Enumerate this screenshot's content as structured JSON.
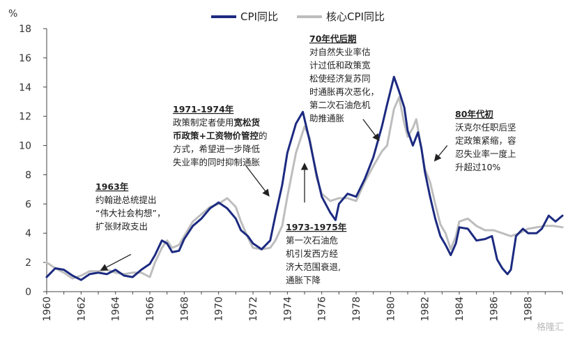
{
  "chart_data": {
    "type": "line",
    "ylabel": "%",
    "ylim": [
      0,
      18
    ],
    "yticks": [
      0,
      2,
      4,
      6,
      8,
      10,
      12,
      14,
      16,
      18
    ],
    "xlim": [
      1960,
      1990
    ],
    "xticks": [
      "1960",
      "1962",
      "1964",
      "1966",
      "1968",
      "1970",
      "1972",
      "1974",
      "1976",
      "1978",
      "1980",
      "1982",
      "1984",
      "1986",
      "1988"
    ],
    "legend_position": "top-center",
    "series": [
      {
        "name": "CPI同比",
        "color": "#1c2a80",
        "points": [
          [
            1960.0,
            1.0
          ],
          [
            1960.5,
            1.6
          ],
          [
            1961.0,
            1.5
          ],
          [
            1961.5,
            1.1
          ],
          [
            1962.0,
            0.8
          ],
          [
            1962.5,
            1.2
          ],
          [
            1963.0,
            1.3
          ],
          [
            1963.5,
            1.2
          ],
          [
            1964.0,
            1.5
          ],
          [
            1964.5,
            1.1
          ],
          [
            1965.0,
            1.0
          ],
          [
            1965.5,
            1.5
          ],
          [
            1966.0,
            1.9
          ],
          [
            1966.3,
            2.5
          ],
          [
            1966.7,
            3.5
          ],
          [
            1967.0,
            3.3
          ],
          [
            1967.3,
            2.7
          ],
          [
            1967.7,
            2.8
          ],
          [
            1968.0,
            3.6
          ],
          [
            1968.5,
            4.5
          ],
          [
            1969.0,
            5.0
          ],
          [
            1969.5,
            5.7
          ],
          [
            1970.0,
            6.1
          ],
          [
            1970.5,
            5.7
          ],
          [
            1971.0,
            5.0
          ],
          [
            1971.3,
            4.2
          ],
          [
            1971.7,
            3.8
          ],
          [
            1972.0,
            3.3
          ],
          [
            1972.5,
            2.9
          ],
          [
            1973.0,
            3.5
          ],
          [
            1973.3,
            5.2
          ],
          [
            1973.7,
            7.3
          ],
          [
            1974.0,
            9.5
          ],
          [
            1974.5,
            11.5
          ],
          [
            1974.9,
            12.3
          ],
          [
            1975.3,
            10.3
          ],
          [
            1975.7,
            8.0
          ],
          [
            1976.0,
            6.5
          ],
          [
            1976.5,
            5.4
          ],
          [
            1976.8,
            4.9
          ],
          [
            1977.0,
            6.0
          ],
          [
            1977.5,
            6.7
          ],
          [
            1978.0,
            6.5
          ],
          [
            1978.5,
            7.7
          ],
          [
            1979.0,
            9.2
          ],
          [
            1979.5,
            11.3
          ],
          [
            1979.8,
            12.8
          ],
          [
            1980.2,
            14.7
          ],
          [
            1980.5,
            13.7
          ],
          [
            1980.8,
            12.6
          ],
          [
            1981.0,
            11.0
          ],
          [
            1981.3,
            10.0
          ],
          [
            1981.6,
            10.9
          ],
          [
            1981.8,
            9.8
          ],
          [
            1982.0,
            8.2
          ],
          [
            1982.3,
            6.5
          ],
          [
            1982.6,
            5.0
          ],
          [
            1982.9,
            3.8
          ],
          [
            1983.2,
            3.2
          ],
          [
            1983.5,
            2.5
          ],
          [
            1983.8,
            3.3
          ],
          [
            1984.0,
            4.4
          ],
          [
            1984.5,
            4.3
          ],
          [
            1985.0,
            3.5
          ],
          [
            1985.5,
            3.6
          ],
          [
            1985.9,
            3.8
          ],
          [
            1986.2,
            2.2
          ],
          [
            1986.5,
            1.6
          ],
          [
            1986.8,
            1.2
          ],
          [
            1987.0,
            1.5
          ],
          [
            1987.3,
            3.8
          ],
          [
            1987.7,
            4.3
          ],
          [
            1988.0,
            4.0
          ],
          [
            1988.5,
            4.0
          ],
          [
            1988.8,
            4.3
          ],
          [
            1989.2,
            5.2
          ],
          [
            1989.6,
            4.8
          ],
          [
            1990.0,
            5.2
          ]
        ]
      },
      {
        "name": "核心CPI同比",
        "color": "#bdbdbd",
        "points": [
          [
            1960.0,
            2.0
          ],
          [
            1960.5,
            1.6
          ],
          [
            1961.0,
            1.3
          ],
          [
            1961.5,
            0.9
          ],
          [
            1962.0,
            1.1
          ],
          [
            1962.5,
            1.4
          ],
          [
            1963.0,
            1.4
          ],
          [
            1963.5,
            1.5
          ],
          [
            1964.0,
            1.3
          ],
          [
            1964.5,
            1.2
          ],
          [
            1965.0,
            1.3
          ],
          [
            1965.5,
            1.3
          ],
          [
            1966.0,
            1.0
          ],
          [
            1966.3,
            2.0
          ],
          [
            1966.7,
            3.0
          ],
          [
            1967.0,
            3.5
          ],
          [
            1967.3,
            3.0
          ],
          [
            1967.7,
            3.2
          ],
          [
            1968.0,
            3.8
          ],
          [
            1968.5,
            4.8
          ],
          [
            1969.0,
            5.3
          ],
          [
            1969.5,
            5.8
          ],
          [
            1970.0,
            6.0
          ],
          [
            1970.5,
            6.4
          ],
          [
            1971.0,
            5.8
          ],
          [
            1971.3,
            4.8
          ],
          [
            1971.7,
            3.7
          ],
          [
            1972.0,
            3.0
          ],
          [
            1972.5,
            2.9
          ],
          [
            1973.0,
            3.0
          ],
          [
            1973.3,
            3.5
          ],
          [
            1973.7,
            4.5
          ],
          [
            1974.0,
            6.5
          ],
          [
            1974.5,
            9.5
          ],
          [
            1975.0,
            11.3
          ],
          [
            1975.3,
            10.5
          ],
          [
            1975.7,
            7.8
          ],
          [
            1976.0,
            6.7
          ],
          [
            1976.5,
            6.2
          ],
          [
            1977.0,
            6.4
          ],
          [
            1977.5,
            6.4
          ],
          [
            1978.0,
            6.2
          ],
          [
            1978.5,
            7.5
          ],
          [
            1979.0,
            8.6
          ],
          [
            1979.5,
            9.6
          ],
          [
            1979.8,
            10.0
          ],
          [
            1980.2,
            12.5
          ],
          [
            1980.5,
            13.3
          ],
          [
            1980.8,
            11.5
          ],
          [
            1981.0,
            10.6
          ],
          [
            1981.3,
            11.2
          ],
          [
            1981.5,
            11.8
          ],
          [
            1981.8,
            9.8
          ],
          [
            1982.0,
            8.4
          ],
          [
            1982.3,
            7.5
          ],
          [
            1982.6,
            6.0
          ],
          [
            1982.9,
            4.6
          ],
          [
            1983.2,
            4.0
          ],
          [
            1983.5,
            2.9
          ],
          [
            1983.8,
            3.8
          ],
          [
            1984.0,
            4.8
          ],
          [
            1984.5,
            5.0
          ],
          [
            1985.0,
            4.5
          ],
          [
            1985.5,
            4.2
          ],
          [
            1986.0,
            4.2
          ],
          [
            1986.5,
            4.0
          ],
          [
            1987.0,
            3.8
          ],
          [
            1987.5,
            4.0
          ],
          [
            1988.0,
            4.3
          ],
          [
            1988.5,
            4.4
          ],
          [
            1989.0,
            4.5
          ],
          [
            1989.5,
            4.5
          ],
          [
            1990.0,
            4.4
          ]
        ]
      }
    ],
    "annotations": [
      {
        "id": "ann-1963",
        "heading": "1963年",
        "lines": [
          "约翰逊总统提出",
          "“伟大社会构想”，",
          "扩张财政支出"
        ],
        "arrow": {
          "from": [
            1964.9,
            2.55
          ],
          "to": [
            1963.2,
            1.5
          ]
        }
      },
      {
        "id": "ann-1971-1974",
        "heading": "1971-1974年",
        "lines": [
          [
            {
              "t": "政策制定者使用"
            },
            {
              "t": "宽松货",
              "b": true
            }
          ],
          [
            {
              "t": "币政策+工资物价管控",
              "b": true
            },
            {
              "t": "的"
            }
          ],
          [
            {
              "t": "方式，希望进一步降低"
            }
          ],
          [
            {
              "t": "失业率的同时抑制通胀"
            }
          ]
        ],
        "arrow": {
          "from": [
            1971.6,
            8.6
          ],
          "to": [
            1972.9,
            6.6
          ]
        }
      },
      {
        "id": "ann-70s-late",
        "heading": "70年代后期",
        "lines": [
          "对自然失业率估",
          "计过低和政策宽",
          "松使经济复苏同",
          "时通胀再次恶化，",
          "第二次石油危机",
          "助推通胀"
        ],
        "arrow": {
          "from": [
            1978.4,
            11.8
          ],
          "to": [
            1979.3,
            10.4
          ]
        }
      },
      {
        "id": "ann-73-75",
        "heading": "1973-1975年",
        "lines": [
          "第一次石油危",
          "机引发西方经",
          "济大范围衰退,",
          "通胀下降"
        ],
        "arrow": {
          "from": [
            1975.0,
            6.1
          ],
          "to": [
            1975.0,
            8.7
          ]
        }
      },
      {
        "id": "ann-80s",
        "heading": "80年代初",
        "lines": [
          "沃克尔任职后坚",
          "定政策紧缩，容",
          "忍失业率一度上",
          "升超过10%"
        ],
        "arrow": {
          "from": [
            1983.3,
            10.0
          ],
          "to": [
            1982.6,
            9.0
          ]
        }
      }
    ]
  },
  "watermark": "格隆汇"
}
